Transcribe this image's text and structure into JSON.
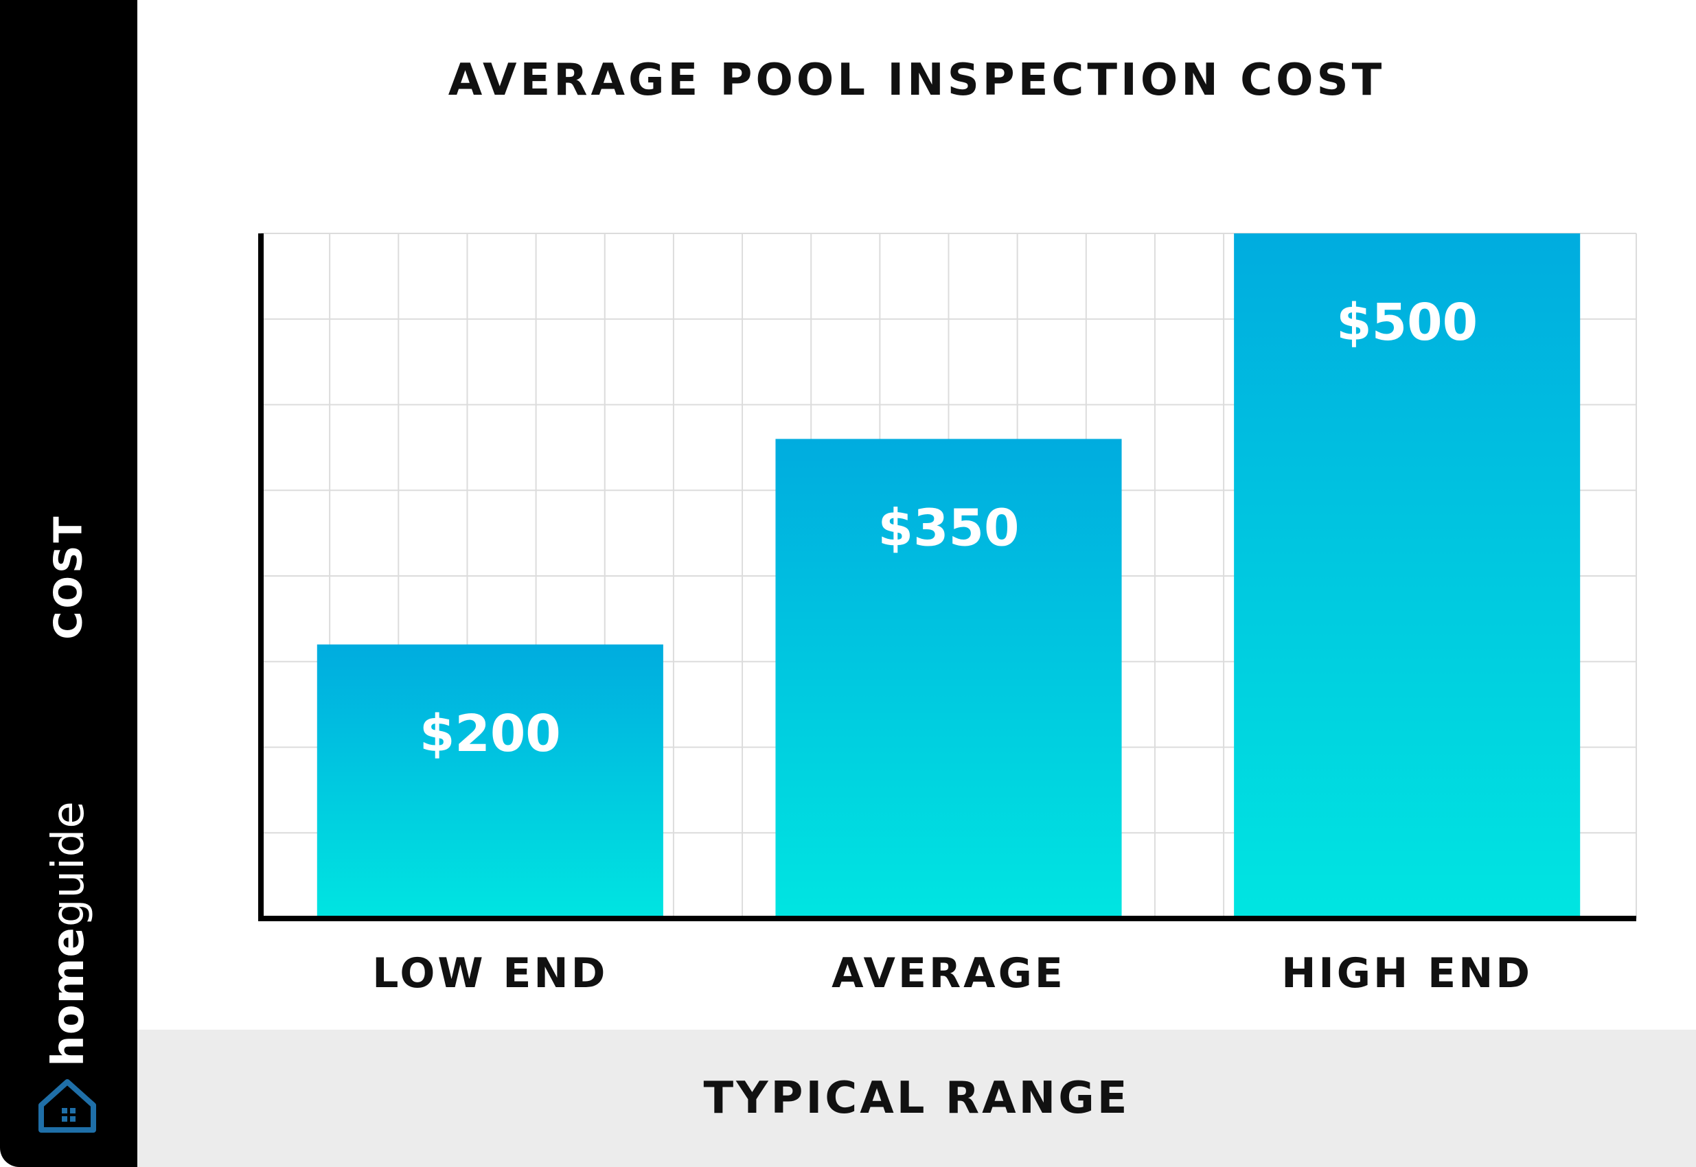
{
  "chart_data": {
    "type": "bar",
    "title": "AVERAGE POOL INSPECTION COST",
    "xlabel": "TYPICAL RANGE",
    "ylabel": "COST",
    "categories": [
      "LOW END",
      "AVERAGE",
      "HIGH END"
    ],
    "values": [
      200,
      350,
      500
    ],
    "value_labels": [
      "$200",
      "$350",
      "$500"
    ],
    "ylim": [
      0,
      500
    ],
    "grid": true,
    "colors": {
      "bar_top": "#00acdf",
      "bar_bottom": "#00e5e1",
      "axis": "#000000",
      "grid": "#dcdcdc",
      "value_text": "#ffffff"
    }
  },
  "brand": {
    "home": "home",
    "guide": "guide",
    "icon": "house-icon"
  }
}
